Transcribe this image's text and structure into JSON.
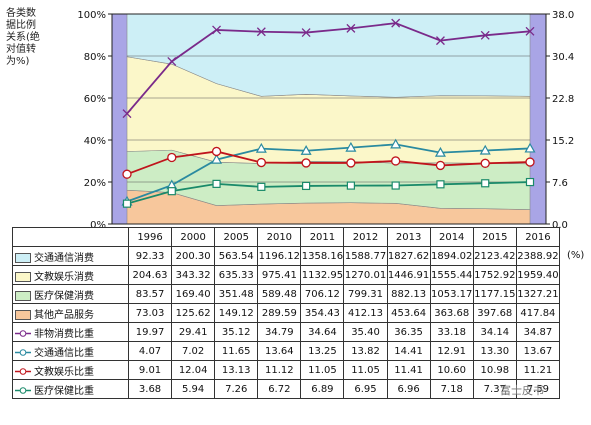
{
  "chart_data": {
    "type": "area",
    "ylabel_left": "各类数据比例关系(绝对值转为%)",
    "ylim_left": [
      0,
      100
    ],
    "left_ticks": [
      "0%",
      "20%",
      "40%",
      "60%",
      "80%",
      "100%"
    ],
    "ylim_right": [
      0,
      38
    ],
    "right_ticks": [
      "0.0",
      "7.6",
      "15.2",
      "22.8",
      "30.4",
      "38.0"
    ],
    "unit": "(%)",
    "categories": [
      "1996",
      "2000",
      "2005",
      "2010",
      "2011",
      "2012",
      "2013",
      "2014",
      "2015",
      "2016"
    ],
    "area_series": [
      {
        "name": "交通通信消费",
        "color": "#cdeff6",
        "values": [
          92.33,
          200.3,
          563.54,
          1196.12,
          1358.16,
          1588.77,
          1827.62,
          1894.02,
          2123.42,
          2388.92
        ]
      },
      {
        "name": "文教娱乐消费",
        "color": "#fbf7c9",
        "values": [
          204.63,
          343.32,
          635.33,
          975.41,
          1132.95,
          1270.01,
          1446.91,
          1555.44,
          1752.92,
          1959.4
        ]
      },
      {
        "name": "医疗保健消费",
        "color": "#cdedc5",
        "values": [
          83.57,
          169.4,
          351.48,
          589.48,
          706.12,
          799.31,
          882.13,
          1053.17,
          1177.15,
          1327.21
        ]
      },
      {
        "name": "其他产品服务",
        "color": "#f7c79c",
        "values": [
          73.03,
          125.62,
          149.12,
          289.59,
          354.43,
          412.13,
          453.64,
          363.68,
          397.68,
          417.84
        ]
      }
    ],
    "line_series": [
      {
        "name": "非物消费比重",
        "color": "#7a2a8a",
        "marker": "x",
        "values": [
          19.97,
          29.41,
          35.12,
          34.79,
          34.64,
          35.4,
          36.35,
          33.18,
          34.14,
          34.87
        ]
      },
      {
        "name": "交通通信比重",
        "color": "#2a8aa0",
        "marker": "triangle",
        "values": [
          4.07,
          7.02,
          11.65,
          13.64,
          13.25,
          13.82,
          14.41,
          12.91,
          13.3,
          13.67
        ]
      },
      {
        "name": "文教娱乐比重",
        "color": "#c0141c",
        "marker": "circle",
        "values": [
          9.01,
          12.04,
          13.13,
          11.12,
          11.05,
          11.05,
          11.41,
          10.6,
          10.98,
          11.21
        ]
      },
      {
        "name": "医疗保健比重",
        "color": "#1a8a6a",
        "marker": "square",
        "values": [
          3.68,
          5.94,
          7.26,
          6.72,
          6.89,
          6.95,
          6.96,
          7.18,
          7.37,
          7.59
        ]
      }
    ],
    "table_rows": [
      [
        "92.33",
        "200.30",
        "563.54",
        "1196.12",
        "1358.16",
        "1588.77",
        "1827.62",
        "1894.02",
        "2123.42",
        "2388.92"
      ],
      [
        "204.63",
        "343.32",
        "635.33",
        "975.41",
        "1132.95",
        "1270.01",
        "1446.91",
        "1555.44",
        "1752.92",
        "1959.40"
      ],
      [
        "83.57",
        "169.40",
        "351.48",
        "589.48",
        "706.12",
        "799.31",
        "882.13",
        "1053.17",
        "1177.15",
        "1327.21"
      ],
      [
        "73.03",
        "125.62",
        "149.12",
        "289.59",
        "354.43",
        "412.13",
        "453.64",
        "363.68",
        "397.68",
        "417.84"
      ],
      [
        "19.97",
        "29.41",
        "35.12",
        "34.79",
        "34.64",
        "35.40",
        "36.35",
        "33.18",
        "34.14",
        "34.87"
      ],
      [
        "4.07",
        "7.02",
        "11.65",
        "13.64",
        "13.25",
        "13.82",
        "14.41",
        "12.91",
        "13.30",
        "13.67"
      ],
      [
        "9.01",
        "12.04",
        "13.13",
        "11.12",
        "11.05",
        "11.05",
        "11.41",
        "10.60",
        "10.98",
        "11.21"
      ],
      [
        "3.68",
        "5.94",
        "7.26",
        "6.72",
        "6.89",
        "6.95",
        "6.96",
        "7.18",
        "7.37",
        "7.59"
      ]
    ],
    "row_labels": [
      "交通通信消费",
      "文教娱乐消费",
      "医疗保健消费",
      "其他产品服务",
      "非物消费比重",
      "交通通信比重",
      "文教娱乐比重",
      "医疗保健比重"
    ],
    "grid": true
  },
  "watermark": "富士皮书"
}
